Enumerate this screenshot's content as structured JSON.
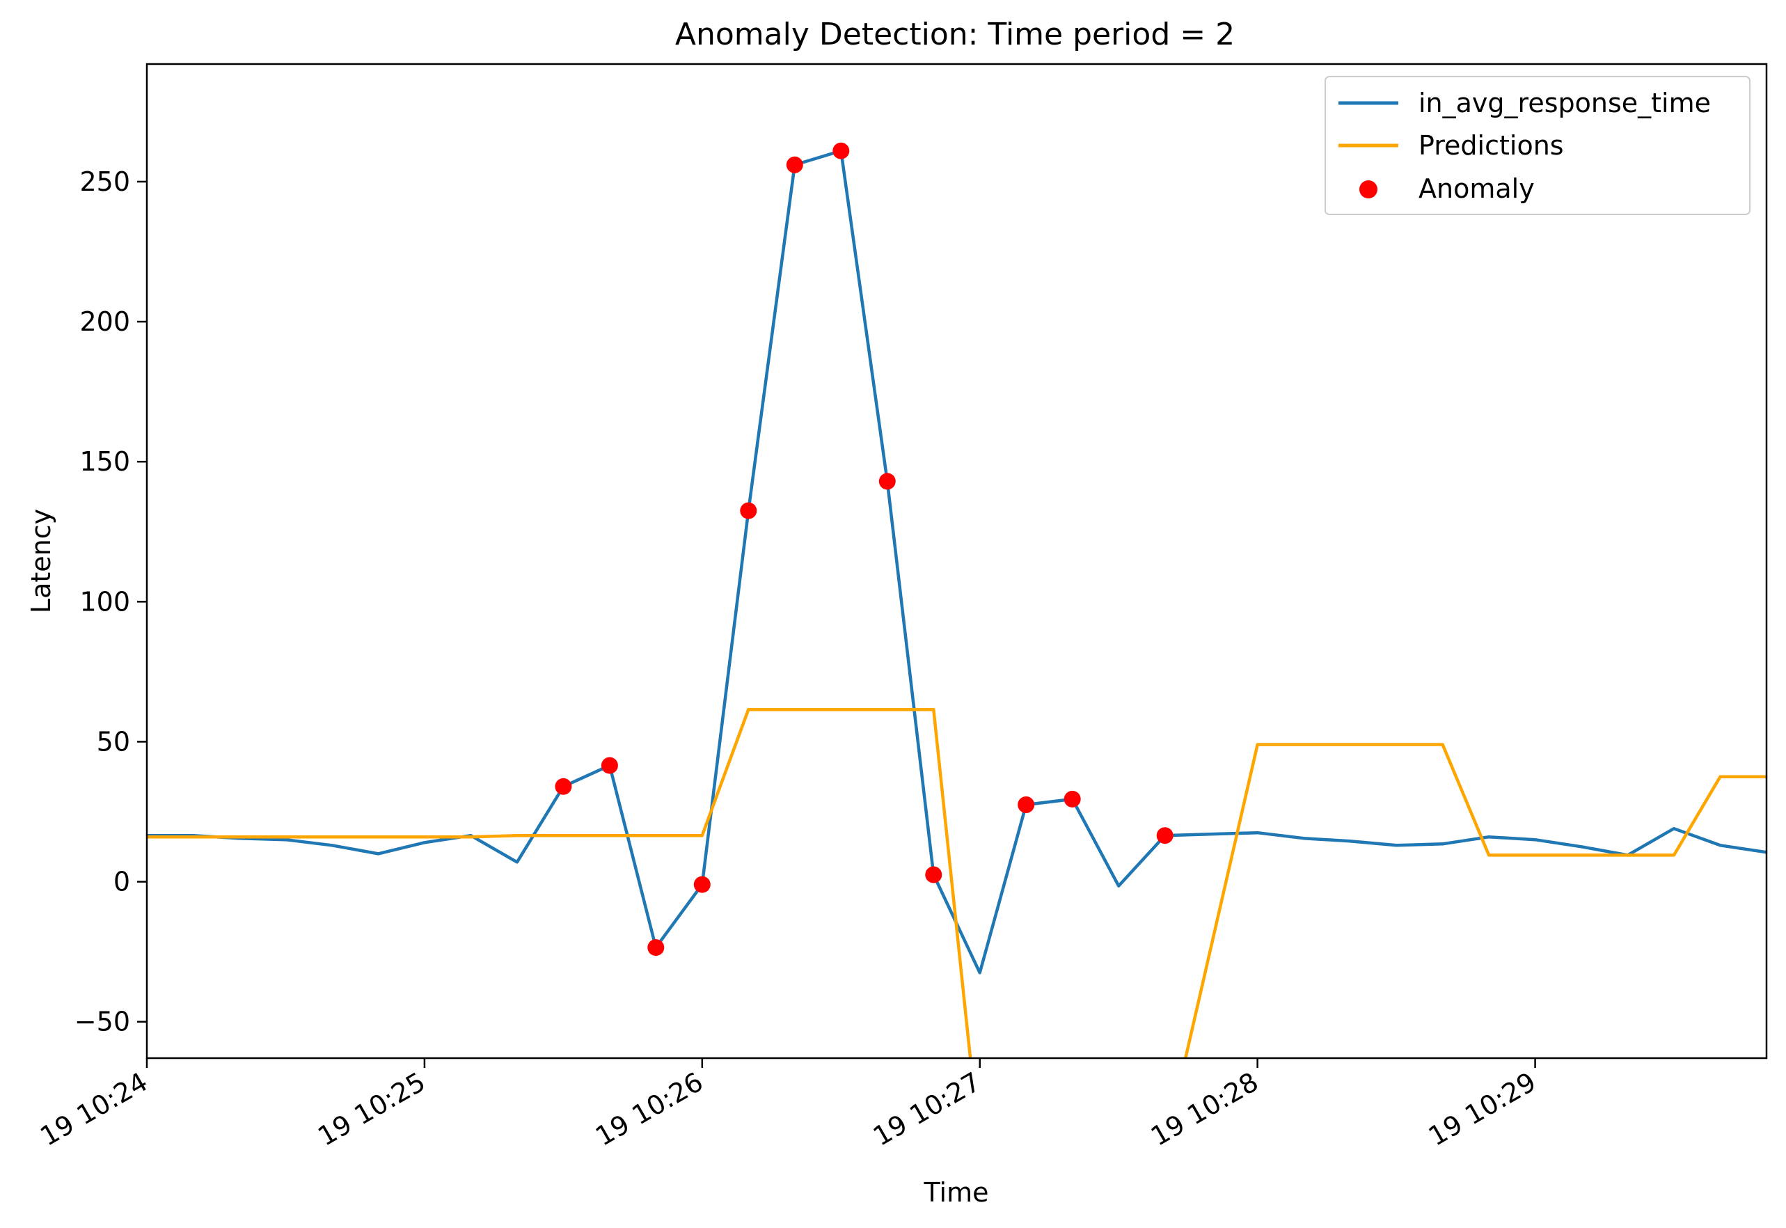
{
  "chart_data": {
    "type": "line",
    "title": "Anomaly Detection: Time period = 2",
    "xlabel": "Time",
    "ylabel": "Latency",
    "xlim": [
      "10:24:00",
      "10:29:50"
    ],
    "ylim": [
      -63,
      292
    ],
    "x_ticks": [
      "10:24:00",
      "10:25:00",
      "10:26:00",
      "10:27:00",
      "10:28:00",
      "10:29:00"
    ],
    "x_tick_labels": [
      "19 10:24",
      "19 10:25",
      "19 10:26",
      "19 10:27",
      "19 10:28",
      "19 10:29"
    ],
    "y_ticks": [
      -50,
      0,
      50,
      100,
      150,
      200,
      250
    ],
    "y_tick_labels": [
      "−50",
      "0",
      "50",
      "100",
      "150",
      "200",
      "250"
    ],
    "legend_position": "top-right",
    "grid": false,
    "series": [
      {
        "name": "in_avg_response_time",
        "kind": "line",
        "color": "#1f77b4",
        "points": [
          [
            "10:24:00",
            16.5
          ],
          [
            "10:24:10",
            16.5
          ],
          [
            "10:24:20",
            15.5
          ],
          [
            "10:24:30",
            15.0
          ],
          [
            "10:24:40",
            13.0
          ],
          [
            "10:24:50",
            10.0
          ],
          [
            "10:25:00",
            14.0
          ],
          [
            "10:25:10",
            16.5
          ],
          [
            "10:25:20",
            7.0
          ],
          [
            "10:25:30",
            34.0
          ],
          [
            "10:25:40",
            41.5
          ],
          [
            "10:25:50",
            -23.5
          ],
          [
            "10:26:00",
            -1.0
          ],
          [
            "10:26:10",
            132.5
          ],
          [
            "10:26:20",
            256.0
          ],
          [
            "10:26:30",
            261.0
          ],
          [
            "10:26:40",
            143.0
          ],
          [
            "10:26:50",
            2.5
          ],
          [
            "10:27:00",
            -32.5
          ],
          [
            "10:27:10",
            27.5
          ],
          [
            "10:27:20",
            29.5
          ],
          [
            "10:27:30",
            -1.5
          ],
          [
            "10:27:40",
            16.5
          ],
          [
            "10:28:00",
            17.5
          ],
          [
            "10:28:10",
            15.5
          ],
          [
            "10:28:20",
            14.5
          ],
          [
            "10:28:30",
            13.0
          ],
          [
            "10:28:40",
            13.5
          ],
          [
            "10:28:50",
            16.0
          ],
          [
            "10:29:00",
            15.0
          ],
          [
            "10:29:10",
            12.5
          ],
          [
            "10:29:20",
            9.5
          ],
          [
            "10:29:30",
            19.0
          ],
          [
            "10:29:40",
            13.0
          ],
          [
            "10:29:50",
            10.5
          ]
        ]
      },
      {
        "name": "Predictions",
        "kind": "line",
        "color": "#ffa500",
        "points": [
          [
            "10:24:00",
            16.0
          ],
          [
            "10:25:10",
            16.0
          ],
          [
            "10:25:20",
            16.5
          ],
          [
            "10:26:00",
            16.5
          ],
          [
            "10:26:10",
            61.5
          ],
          [
            "10:26:50",
            61.5
          ],
          [
            "10:27:00",
            -95.0
          ],
          [
            "10:27:40",
            -95.0
          ],
          [
            "10:28:00",
            49.0
          ],
          [
            "10:28:40",
            49.0
          ],
          [
            "10:28:50",
            9.5
          ],
          [
            "10:29:30",
            9.5
          ],
          [
            "10:29:40",
            37.5
          ],
          [
            "10:29:50",
            37.5
          ]
        ]
      },
      {
        "name": "Anomaly",
        "kind": "scatter",
        "color": "#ff0000",
        "points": [
          [
            "10:25:30",
            34.0
          ],
          [
            "10:25:40",
            41.5
          ],
          [
            "10:25:50",
            -23.5
          ],
          [
            "10:26:00",
            -1.0
          ],
          [
            "10:26:10",
            132.5
          ],
          [
            "10:26:20",
            256.0
          ],
          [
            "10:26:30",
            261.0
          ],
          [
            "10:26:40",
            143.0
          ],
          [
            "10:26:50",
            2.5
          ],
          [
            "10:27:10",
            27.5
          ],
          [
            "10:27:20",
            29.5
          ],
          [
            "10:27:40",
            16.5
          ]
        ]
      }
    ]
  }
}
